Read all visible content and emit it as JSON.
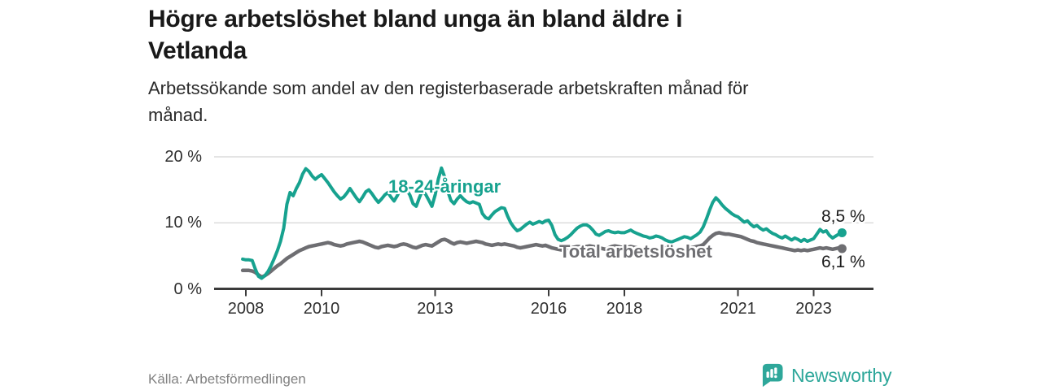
{
  "header": {
    "title_lines": [
      "Högre arbetslöshet bland unga än bland äldre i",
      "Vetlanda"
    ],
    "subtitle_lines": [
      "Arbetssökande som andel av den registerbaserade arbetskraften månad för",
      "månad."
    ]
  },
  "footer": {
    "source": "Källa: Arbetsförmedlingen",
    "brand": "Newsworthy",
    "brand_color": "#2ea79a"
  },
  "chart_data": {
    "type": "line",
    "title": "Högre arbetslöshet bland unga än bland äldre i Vetlanda",
    "subtitle": "Arbetssökande som andel av den registerbaserade arbetskraften månad för månad.",
    "unit": "%",
    "x_start": "2007-12",
    "x_frequency": "monthly",
    "x_end": "2023-10",
    "ylim": [
      0,
      21
    ],
    "grid": "horizontal",
    "grid_color": "#dcdcdc",
    "axis_color": "#3b3b3b",
    "tick_label_color": "#2e2e2e",
    "y_ticks": [
      {
        "value": 0,
        "label": "0 %"
      },
      {
        "value": 10,
        "label": "10 %"
      },
      {
        "value": 20,
        "label": "20 %"
      }
    ],
    "x_ticks": [
      {
        "value": 2008,
        "label": "2008"
      },
      {
        "value": 2010,
        "label": "2010"
      },
      {
        "value": 2013,
        "label": "2013"
      },
      {
        "value": 2016,
        "label": "2016"
      },
      {
        "value": 2018,
        "label": "2018"
      },
      {
        "value": 2021,
        "label": "2021"
      },
      {
        "value": 2023,
        "label": "2023"
      }
    ],
    "series": [
      {
        "name": "18-24-åringar",
        "color": "#17a28f",
        "end_label": "8,5 %",
        "end_value": 8.5,
        "values": [
          4.5,
          4.4,
          4.4,
          4.3,
          3.0,
          1.9,
          1.6,
          2.0,
          2.6,
          3.5,
          4.6,
          5.8,
          7.2,
          9.2,
          12.8,
          14.6,
          14.1,
          15.2,
          16.1,
          17.4,
          18.2,
          17.8,
          17.1,
          16.6,
          17.0,
          17.3,
          16.7,
          16.1,
          15.4,
          14.7,
          14.1,
          13.6,
          13.9,
          14.5,
          15.2,
          14.5,
          13.8,
          13.2,
          13.9,
          14.7,
          15.0,
          14.4,
          13.7,
          13.1,
          13.6,
          14.2,
          14.6,
          13.9,
          13.3,
          14.1,
          15.1,
          15.6,
          15.0,
          14.2,
          12.9,
          12.5,
          13.8,
          14.9,
          14.3,
          13.4,
          12.5,
          14.2,
          16.6,
          18.3,
          17.0,
          14.8,
          13.4,
          12.9,
          13.6,
          14.1,
          13.6,
          13.2,
          13.0,
          13.2,
          13.0,
          12.8,
          11.4,
          10.8,
          10.6,
          11.2,
          11.7,
          12.0,
          12.3,
          12.2,
          11.0,
          10.0,
          9.3,
          8.8,
          9.0,
          9.4,
          9.8,
          10.1,
          9.8,
          10.0,
          10.2,
          10.0,
          10.3,
          10.4,
          9.6,
          8.2,
          7.5,
          7.3,
          7.5,
          7.8,
          8.2,
          8.7,
          9.2,
          9.5,
          9.7,
          9.7,
          9.4,
          8.9,
          8.3,
          8.1,
          8.4,
          8.7,
          8.8,
          8.6,
          8.5,
          8.6,
          8.5,
          8.5,
          8.7,
          8.9,
          8.6,
          8.4,
          8.2,
          8.0,
          7.9,
          7.7,
          7.8,
          8.0,
          7.9,
          7.7,
          7.4,
          7.2,
          7.1,
          7.3,
          7.5,
          7.7,
          7.9,
          7.8,
          7.6,
          7.9,
          8.2,
          8.6,
          9.4,
          10.6,
          11.9,
          13.1,
          13.8,
          13.3,
          12.7,
          12.2,
          11.8,
          11.4,
          11.1,
          10.9,
          10.5,
          10.1,
          10.3,
          9.8,
          9.4,
          9.6,
          9.2,
          8.9,
          9.1,
          8.7,
          8.4,
          8.2,
          7.9,
          7.7,
          8.0,
          7.7,
          7.4,
          7.7,
          7.5,
          7.2,
          7.5,
          7.2,
          7.4,
          7.6,
          8.3,
          9.0,
          8.6,
          8.8,
          8.1,
          7.7,
          8.0,
          8.3,
          8.5
        ]
      },
      {
        "name": "Total arbetslöshet",
        "color": "#6e6e72",
        "end_label": "6,1 %",
        "end_value": 6.1,
        "values": [
          2.8,
          2.8,
          2.8,
          2.7,
          2.5,
          2.1,
          1.8,
          2.0,
          2.3,
          2.7,
          3.1,
          3.5,
          3.8,
          4.2,
          4.6,
          4.9,
          5.2,
          5.5,
          5.8,
          6.0,
          6.2,
          6.4,
          6.5,
          6.6,
          6.7,
          6.8,
          6.9,
          7.0,
          6.9,
          6.7,
          6.6,
          6.5,
          6.6,
          6.8,
          6.9,
          7.0,
          7.1,
          7.2,
          7.1,
          6.9,
          6.7,
          6.5,
          6.3,
          6.2,
          6.4,
          6.5,
          6.6,
          6.5,
          6.4,
          6.5,
          6.7,
          6.8,
          6.7,
          6.5,
          6.3,
          6.2,
          6.4,
          6.6,
          6.7,
          6.6,
          6.5,
          6.8,
          7.1,
          7.4,
          7.5,
          7.3,
          7.0,
          6.8,
          7.0,
          7.1,
          7.0,
          6.9,
          7.0,
          7.1,
          7.2,
          7.1,
          7.0,
          6.8,
          6.7,
          6.6,
          6.7,
          6.8,
          6.7,
          6.8,
          6.7,
          6.6,
          6.5,
          6.3,
          6.2,
          6.3,
          6.4,
          6.5,
          6.6,
          6.7,
          6.6,
          6.5,
          6.6,
          6.4,
          6.2,
          6.1,
          6.0,
          5.9,
          6.0,
          6.1,
          6.2,
          6.3,
          6.4,
          6.4,
          6.3,
          6.4,
          6.5,
          6.4,
          6.3,
          6.2,
          6.1,
          6.0,
          6.2,
          6.4,
          6.5,
          6.4,
          6.3,
          6.2,
          6.3,
          6.4,
          6.3,
          6.2,
          6.0,
          5.9,
          5.8,
          5.7,
          5.8,
          5.9,
          6.0,
          6.1,
          6.2,
          6.1,
          6.0,
          5.9,
          5.8,
          5.9,
          6.0,
          6.1,
          6.2,
          6.3,
          6.4,
          6.5,
          6.7,
          7.2,
          7.7,
          8.1,
          8.4,
          8.5,
          8.4,
          8.3,
          8.3,
          8.2,
          8.1,
          8.0,
          7.9,
          7.7,
          7.5,
          7.3,
          7.2,
          7.0,
          6.9,
          6.8,
          6.7,
          6.6,
          6.5,
          6.4,
          6.3,
          6.2,
          6.1,
          6.0,
          5.9,
          5.8,
          5.9,
          5.8,
          5.9,
          5.8,
          5.9,
          6.0,
          6.1,
          6.2,
          6.1,
          6.2,
          6.1,
          6.0,
          6.1,
          6.2,
          6.1
        ]
      }
    ]
  }
}
